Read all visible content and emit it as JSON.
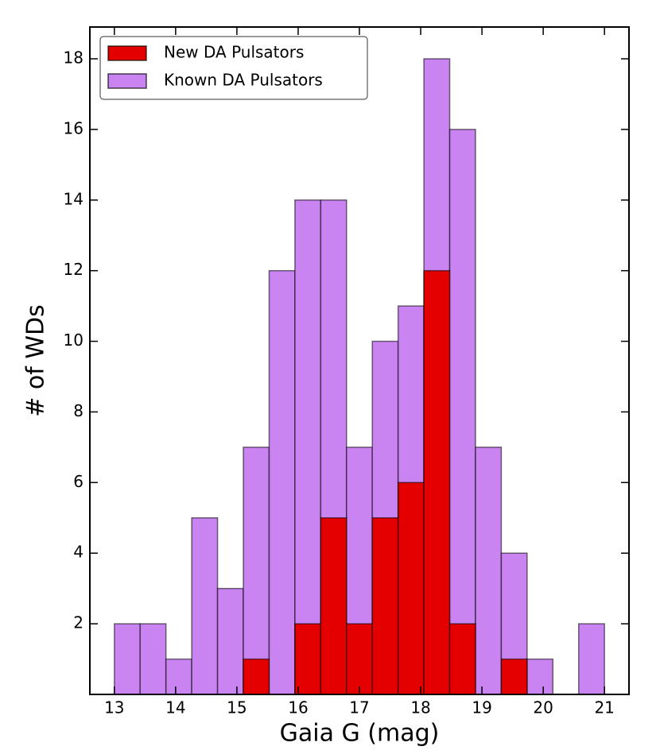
{
  "chart_data": {
    "type": "histogram",
    "xlabel": "Gaia G (mag)",
    "ylabel": "# of WDs",
    "bins": [
      13,
      13.4211,
      13.8421,
      14.2632,
      14.6842,
      15.1053,
      15.5263,
      15.9474,
      16.3684,
      16.7895,
      17.2105,
      17.6316,
      18.0526,
      18.4737,
      18.8947,
      19.3158,
      19.7368,
      20.1579,
      20.5789,
      21
    ],
    "series": [
      {
        "name": "New DA Pulsators",
        "color": "#e50000",
        "values": [
          0,
          0,
          0,
          0,
          0,
          1,
          0,
          2,
          5,
          2,
          5,
          6,
          12,
          2,
          0,
          1,
          0,
          0,
          0
        ]
      },
      {
        "name": "Known DA Pulsators",
        "color": "#c984f2",
        "values": [
          2,
          2,
          1,
          5,
          3,
          7,
          12,
          14,
          14,
          7,
          10,
          11,
          18,
          16,
          7,
          4,
          1,
          0,
          2
        ]
      }
    ],
    "xlim": [
      12.6,
      21.4
    ],
    "ylim": [
      0,
      18.9
    ],
    "xticks": [
      13,
      14,
      15,
      16,
      17,
      18,
      19,
      20,
      21
    ],
    "yticks": [
      2,
      4,
      6,
      8,
      10,
      12,
      14,
      16,
      18
    ],
    "legend": "upper left"
  }
}
